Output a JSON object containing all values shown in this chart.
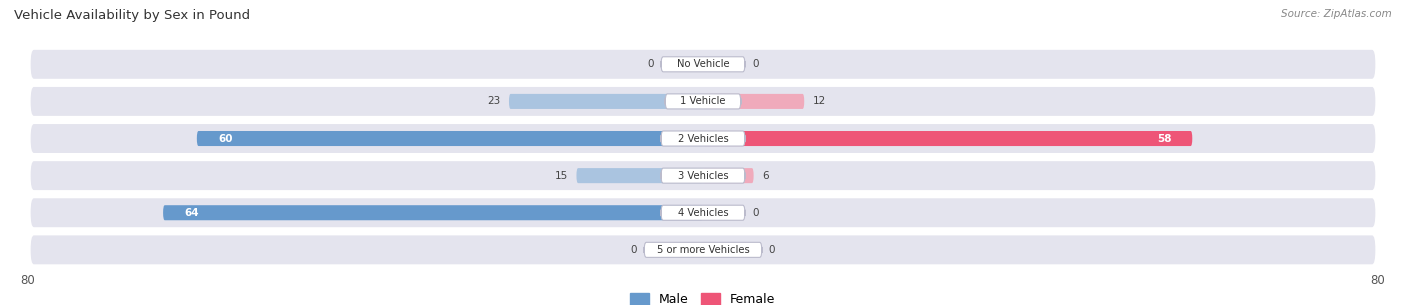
{
  "title": "Vehicle Availability by Sex in Pound",
  "source": "Source: ZipAtlas.com",
  "categories": [
    "No Vehicle",
    "1 Vehicle",
    "2 Vehicles",
    "3 Vehicles",
    "4 Vehicles",
    "5 or more Vehicles"
  ],
  "male_values": [
    0,
    23,
    60,
    15,
    64,
    0
  ],
  "female_values": [
    0,
    12,
    58,
    6,
    0,
    0
  ],
  "male_color_large": "#6699cc",
  "male_color_small": "#aac4e0",
  "female_color_large": "#ee5577",
  "female_color_small": "#f0aabb",
  "row_bg_color": "#e4e4ee",
  "fig_bg_color": "#ffffff",
  "xlim": 80,
  "legend_male": "Male",
  "legend_female": "Female",
  "label_widths": {
    "No Vehicle": 10,
    "1 Vehicle": 9,
    "2 Vehicles": 10,
    "3 Vehicles": 10,
    "4 Vehicles": 10,
    "5 or more Vehicles": 14
  }
}
